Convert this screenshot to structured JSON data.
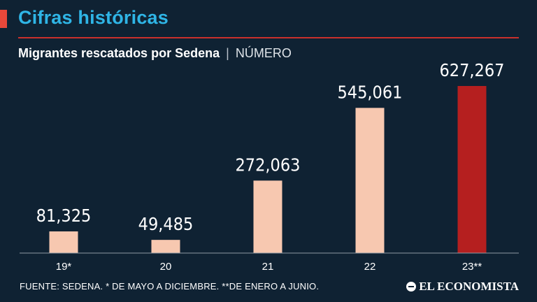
{
  "header": {
    "section_title": "Cifras históricas",
    "chart_title": "Migrantes rescatados por Sedena",
    "separator": "|",
    "unit": "NÚMERO"
  },
  "footer": {
    "source": "FUENTE: SEDENA. * DE MAYO A DICIEMBRE. **DE ENERO A JUNIO.",
    "brand": "EL ECONOMISTA"
  },
  "colors": {
    "background": "#0f2233",
    "bar": "#f7c8b0",
    "bar_highlight": "#b51f1f",
    "accent": "#e8483a",
    "title": "#2fb5e6"
  },
  "chart_data": {
    "type": "bar",
    "title": "Migrantes rescatados por Sedena",
    "ylabel": "NÚMERO",
    "xlabel": "",
    "categories": [
      "19*",
      "20",
      "21",
      "22",
      "23**"
    ],
    "values": [
      81325,
      49485,
      272063,
      545061,
      627267
    ],
    "value_labels": [
      "81,325",
      "49,485",
      "272,063",
      "545,061",
      "627,267"
    ],
    "highlight_index": 4,
    "ylim": [
      0,
      700000
    ],
    "grid": false
  }
}
